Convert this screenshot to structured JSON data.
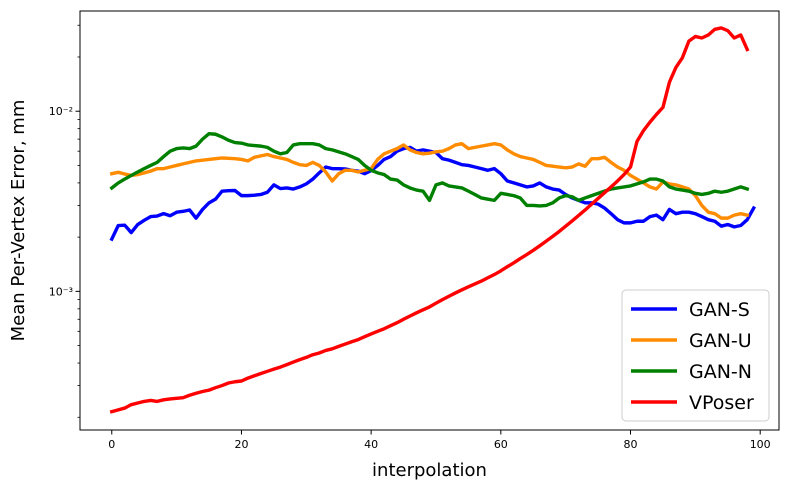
{
  "chart_data": {
    "type": "line",
    "xlabel": "interpolation",
    "ylabel": "Mean Per-Vertex Error, mm",
    "xlim": [
      -4.9,
      102.9
    ],
    "ylim": [
      0.00017,
      0.036
    ],
    "yscale": "log",
    "grid": false,
    "legend_position": "lower-right",
    "x_ticks": [
      0,
      20,
      40,
      60,
      80,
      100
    ],
    "x_tick_labels": [
      "0",
      "20",
      "40",
      "60",
      "80",
      "100"
    ],
    "y_ticks": [
      0.001,
      0.01
    ],
    "y_tick_labels": [
      "10⁻³",
      "10⁻²"
    ],
    "x_start": 0,
    "x_step": 1,
    "series": [
      {
        "name": "GAN-S",
        "color": "#0000ff",
        "values": [
          0.00195,
          0.00232,
          0.00233,
          0.00212,
          0.00235,
          0.00248,
          0.0026,
          0.00262,
          0.0027,
          0.00263,
          0.00275,
          0.00278,
          0.00283,
          0.00255,
          0.00285,
          0.0031,
          0.00325,
          0.0036,
          0.00362,
          0.00363,
          0.0034,
          0.0034,
          0.00342,
          0.00345,
          0.00355,
          0.0039,
          0.00372,
          0.00375,
          0.0037,
          0.0038,
          0.00395,
          0.0042,
          0.00455,
          0.0049,
          0.0048,
          0.0048,
          0.00478,
          0.0047,
          0.00465,
          0.0045,
          0.00468,
          0.005,
          0.0054,
          0.0056,
          0.006,
          0.0062,
          0.0063,
          0.006,
          0.0061,
          0.006,
          0.0059,
          0.00545,
          0.00535,
          0.0052,
          0.00505,
          0.005,
          0.0049,
          0.0048,
          0.0047,
          0.0048,
          0.0045,
          0.0041,
          0.004,
          0.0039,
          0.0038,
          0.00385,
          0.004,
          0.0038,
          0.0037,
          0.00365,
          0.00345,
          0.0033,
          0.0032,
          0.0031,
          0.0031,
          0.00305,
          0.0029,
          0.0027,
          0.0025,
          0.0024,
          0.0024,
          0.00245,
          0.00245,
          0.0026,
          0.00265,
          0.0025,
          0.00285,
          0.0027,
          0.00275,
          0.00275,
          0.0027,
          0.0026,
          0.0025,
          0.00245,
          0.0023,
          0.00235,
          0.00228,
          0.00232,
          0.0025,
          0.0029
        ]
      },
      {
        "name": "GAN-U",
        "color": "#ff8c00",
        "values": [
          0.0045,
          0.00458,
          0.00448,
          0.0044,
          0.00445,
          0.00455,
          0.00465,
          0.0048,
          0.0048,
          0.0049,
          0.005,
          0.0051,
          0.0052,
          0.0053,
          0.00535,
          0.0054,
          0.00545,
          0.0055,
          0.00548,
          0.00545,
          0.0054,
          0.0053,
          0.00555,
          0.00565,
          0.00575,
          0.0056,
          0.0055,
          0.0054,
          0.0052,
          0.00505,
          0.005,
          0.0052,
          0.005,
          0.0046,
          0.0041,
          0.0045,
          0.0047,
          0.0047,
          0.0046,
          0.0047,
          0.0048,
          0.0054,
          0.0058,
          0.006,
          0.0062,
          0.0065,
          0.0061,
          0.0059,
          0.0058,
          0.00585,
          0.00595,
          0.006,
          0.0062,
          0.0065,
          0.0066,
          0.0062,
          0.0063,
          0.0064,
          0.0065,
          0.0066,
          0.0065,
          0.0061,
          0.0058,
          0.0056,
          0.0055,
          0.0054,
          0.0052,
          0.005,
          0.00495,
          0.0049,
          0.00485,
          0.0049,
          0.0051,
          0.00495,
          0.00545,
          0.00545,
          0.00555,
          0.0052,
          0.0049,
          0.0047,
          0.0044,
          0.0042,
          0.004,
          0.0038,
          0.0037,
          0.00405,
          0.00395,
          0.0039,
          0.0038,
          0.0037,
          0.0034,
          0.003,
          0.00275,
          0.0027,
          0.00255,
          0.00255,
          0.00265,
          0.0027,
          0.00265
        ]
      },
      {
        "name": "GAN-N",
        "color": "#008000",
        "values": [
          0.00375,
          0.004,
          0.0042,
          0.0044,
          0.0046,
          0.0048,
          0.005,
          0.0052,
          0.0056,
          0.006,
          0.0062,
          0.00625,
          0.0062,
          0.0064,
          0.007,
          0.0075,
          0.00745,
          0.0072,
          0.0069,
          0.0067,
          0.00665,
          0.0065,
          0.00645,
          0.0064,
          0.0063,
          0.006,
          0.0058,
          0.0059,
          0.0065,
          0.0066,
          0.0066,
          0.0066,
          0.0065,
          0.0062,
          0.0061,
          0.00595,
          0.0058,
          0.0056,
          0.0054,
          0.005,
          0.0047,
          0.00455,
          0.00445,
          0.0042,
          0.00415,
          0.0039,
          0.00375,
          0.00365,
          0.0036,
          0.0032,
          0.0039,
          0.004,
          0.00385,
          0.0038,
          0.00375,
          0.0036,
          0.00345,
          0.0033,
          0.00325,
          0.0032,
          0.0035,
          0.00345,
          0.0034,
          0.0033,
          0.003,
          0.003,
          0.00298,
          0.003,
          0.0031,
          0.0033,
          0.0034,
          0.00335,
          0.0032,
          0.0033,
          0.0034,
          0.0035,
          0.0036,
          0.0037,
          0.00375,
          0.0038,
          0.00385,
          0.00395,
          0.00405,
          0.0042,
          0.0042,
          0.0041,
          0.0038,
          0.0037,
          0.00365,
          0.0036,
          0.0035,
          0.00345,
          0.0035,
          0.0036,
          0.00355,
          0.0036,
          0.0037,
          0.0038,
          0.0037
        ]
      },
      {
        "name": "VPoser",
        "color": "#ff0000",
        "values": [
          0.000215,
          0.00022,
          0.000225,
          0.000235,
          0.00024,
          0.000245,
          0.000248,
          0.000245,
          0.00025,
          0.000253,
          0.000255,
          0.000257,
          0.000265,
          0.000272,
          0.000278,
          0.000283,
          0.000292,
          0.0003,
          0.00031,
          0.000315,
          0.000318,
          0.00033,
          0.00034,
          0.00035,
          0.00036,
          0.00037,
          0.00038,
          0.000392,
          0.000405,
          0.000418,
          0.00043,
          0.000445,
          0.000455,
          0.00047,
          0.00048,
          0.000495,
          0.00051,
          0.000525,
          0.00054,
          0.00056,
          0.00058,
          0.0006,
          0.00062,
          0.000645,
          0.00067,
          0.0007,
          0.00073,
          0.00076,
          0.00079,
          0.00082,
          0.00086,
          0.0009,
          0.00094,
          0.00098,
          0.00102,
          0.00106,
          0.0011,
          0.00114,
          0.00119,
          0.00124,
          0.0013,
          0.00137,
          0.00144,
          0.00152,
          0.0016,
          0.00169,
          0.00179,
          0.0019,
          0.00202,
          0.00215,
          0.0023,
          0.00246,
          0.00264,
          0.00283,
          0.00305,
          0.00328,
          0.00353,
          0.0038,
          0.0041,
          0.00445,
          0.0049,
          0.0068,
          0.0078,
          0.0087,
          0.0096,
          0.0105,
          0.0145,
          0.0175,
          0.0198,
          0.0245,
          0.026,
          0.0255,
          0.0265,
          0.0285,
          0.029,
          0.028,
          0.0255,
          0.0265,
          0.022
        ]
      }
    ]
  }
}
